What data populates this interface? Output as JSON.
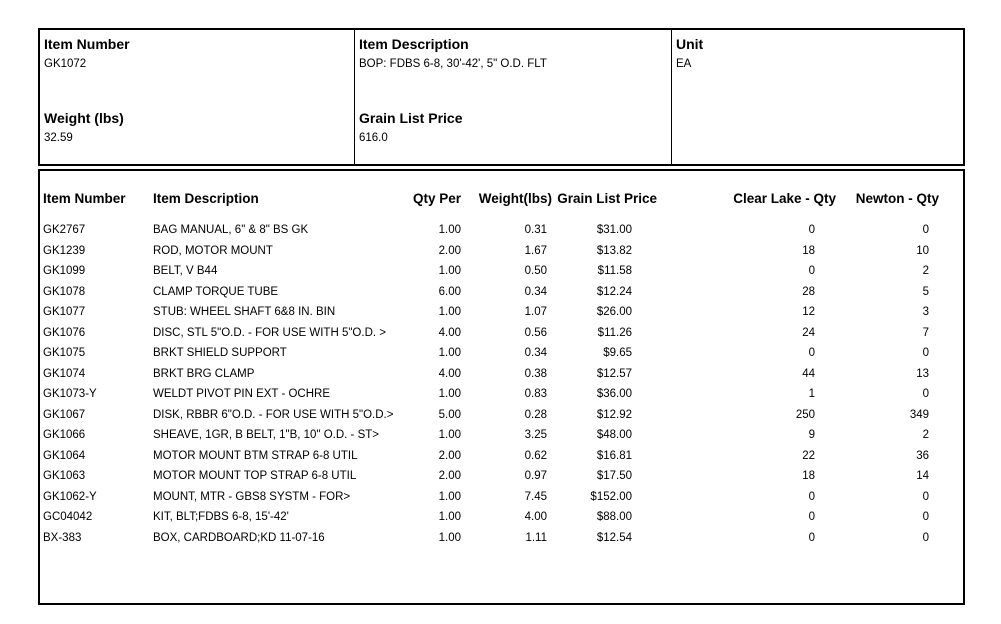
{
  "summary": {
    "item_number": {
      "label": "Item Number",
      "value": "GK1072"
    },
    "item_description": {
      "label": "Item Description",
      "value": "BOP: FDBS 6-8, 30'-42', 5\" O.D. FLT"
    },
    "unit": {
      "label": "Unit",
      "value": "EA"
    },
    "weight": {
      "label": "Weight (lbs)",
      "value": "32.59"
    },
    "grain_list_price": {
      "label": "Grain List Price",
      "value": "616.0"
    }
  },
  "parts_table": {
    "columns": [
      "Item Number",
      "Item Description",
      "Qty Per",
      "Weight(lbs)",
      "Grain List Price",
      "Clear Lake - Qty",
      "Newton - Qty"
    ],
    "rows": [
      [
        "GK2767",
        "BAG MANUAL, 6\" & 8\" BS GK",
        "1.00",
        "0.31",
        "$31.00",
        "0",
        "0"
      ],
      [
        "GK1239",
        "ROD, MOTOR MOUNT",
        "2.00",
        "1.67",
        "$13.82",
        "18",
        "10"
      ],
      [
        "GK1099",
        "BELT, V B44",
        "1.00",
        "0.50",
        "$11.58",
        "0",
        "2"
      ],
      [
        "GK1078",
        "CLAMP TORQUE TUBE",
        "6.00",
        "0.34",
        "$12.24",
        "28",
        "5"
      ],
      [
        "GK1077",
        "STUB: WHEEL SHAFT 6&8 IN. BIN",
        "1.00",
        "1.07",
        "$26.00",
        "12",
        "3"
      ],
      [
        "GK1076",
        "DISC, STL 5\"O.D. - FOR USE WITH 5\"O.D. >",
        "4.00",
        "0.56",
        "$11.26",
        "24",
        "7"
      ],
      [
        "GK1075",
        "BRKT SHIELD SUPPORT",
        "1.00",
        "0.34",
        "$9.65",
        "0",
        "0"
      ],
      [
        "GK1074",
        "BRKT BRG CLAMP",
        "4.00",
        "0.38",
        "$12.57",
        "44",
        "13"
      ],
      [
        "GK1073-Y",
        "WELDT PIVOT PIN EXT - OCHRE",
        "1.00",
        "0.83",
        "$36.00",
        "1",
        "0"
      ],
      [
        "GK1067",
        "DISK, RBBR 6\"O.D. - FOR USE WITH 5\"O.D.>",
        "5.00",
        "0.28",
        "$12.92",
        "250",
        "349"
      ],
      [
        "GK1066",
        "SHEAVE, 1GR, B BELT, 1\"B, 10\" O.D. - ST>",
        "1.00",
        "3.25",
        "$48.00",
        "9",
        "2"
      ],
      [
        "GK1064",
        "MOTOR MOUNT BTM STRAP 6-8 UTIL",
        "2.00",
        "0.62",
        "$16.81",
        "22",
        "36"
      ],
      [
        "GK1063",
        "MOTOR MOUNT TOP STRAP 6-8 UTIL",
        "2.00",
        "0.97",
        "$17.50",
        "18",
        "14"
      ],
      [
        "GK1062-Y",
        "MOUNT, MTR - GBS8 SYSTM - FOR>",
        "1.00",
        "7.45",
        "$152.00",
        "0",
        "0"
      ],
      [
        "GC04042",
        "KIT, BLT;FDBS 6-8, 15'-42'",
        "1.00",
        "4.00",
        "$88.00",
        "0",
        "0"
      ],
      [
        "BX-383",
        "BOX, CARDBOARD;KD 11-07-16",
        "1.00",
        "1.11",
        "$12.54",
        "0",
        "0"
      ]
    ]
  }
}
